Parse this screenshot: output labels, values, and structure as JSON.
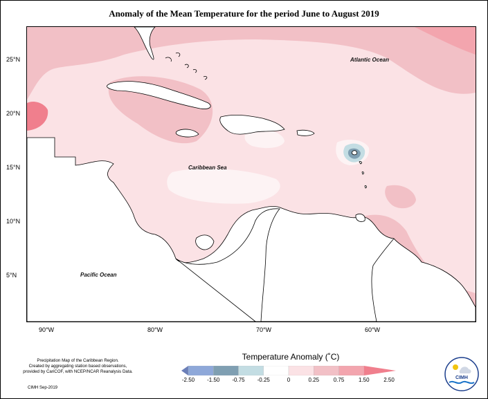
{
  "title": "Anomaly of the Mean Temperature for the period June to August 2019",
  "latitude_labels": [
    "25°N",
    "20°N",
    "15°N",
    "10°N",
    "5°N"
  ],
  "longitude_labels": [
    "90°W",
    "80°W",
    "70°W",
    "60°W"
  ],
  "ocean_labels": {
    "atlantic": "Atlantic Ocean",
    "caribbean": "Caribbean Sea",
    "pacific": "Pacific Ocean"
  },
  "legend": {
    "title": "Temperature Anomaly (˚C)",
    "ticks": [
      "-2.50",
      "-1.50",
      "-0.75",
      "-0.25",
      "0",
      "0.25",
      "0.75",
      "1.50",
      "2.50"
    ],
    "colors": [
      "#6b7fb8",
      "#8ea8d9",
      "#7f9fb2",
      "#c3dde3",
      "#ffffff",
      "#fbe2e5",
      "#f2c0c6",
      "#f3a5ae",
      "#f07f8d"
    ]
  },
  "credits": [
    "Precipitation Map of the Caribbean Region.",
    "Created by aggregating station based observations,",
    "provided by CariCOF, with NCEP/NCAR Reanalysis Data."
  ],
  "produced": "CIMH Sep-2019",
  "logo_text": "CIMH",
  "colors": {
    "base": "#fbe2e5",
    "warm_mid": "#f2c0c6",
    "warm_high": "#f3a5ae",
    "warm_max": "#f07f8d",
    "neutral": "#fdf3f4",
    "cool_low": "#c3dde3",
    "cool_mid": "#7f9fb2",
    "land": "#ffffff"
  }
}
